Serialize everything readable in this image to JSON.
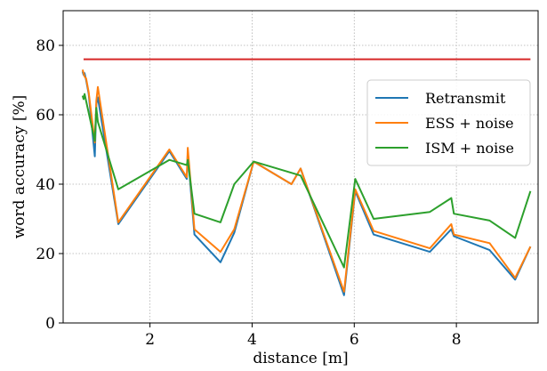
{
  "chart_data": {
    "type": "line",
    "xlabel": "distance [m]",
    "ylabel": "word accuracy [%]",
    "xlim": [
      0.3,
      9.6
    ],
    "ylim": [
      0,
      90
    ],
    "xticks": [
      2,
      4,
      6,
      8
    ],
    "yticks": [
      0,
      20,
      40,
      60,
      80
    ],
    "grid": true,
    "legend_position": "upper right",
    "reference_line": {
      "y": 76,
      "x_range": [
        0.7,
        9.45
      ],
      "color": "#d62728"
    },
    "series": [
      {
        "name": "Retransmit",
        "color": "#1f77b4",
        "x": [
          0.68,
          0.7,
          0.72,
          0.75,
          0.8,
          0.92,
          0.95,
          0.98,
          1.38,
          2.38,
          2.72,
          2.74,
          2.87,
          3.38,
          3.65,
          4.03,
          4.77,
          4.95,
          5.8,
          6.02,
          6.38,
          7.48,
          7.9,
          7.95,
          8.65,
          9.15,
          9.45
        ],
        "y": [
          72.5,
          71.5,
          72.0,
          70.0,
          66.0,
          48.0,
          63.0,
          65.0,
          28.5,
          49.5,
          41.5,
          49.0,
          25.5,
          17.5,
          26.0,
          46.5,
          40.0,
          44.5,
          8.0,
          38.0,
          25.5,
          20.5,
          27.0,
          25.0,
          21.0,
          12.5,
          22.0
        ]
      },
      {
        "name": "ESS + noise",
        "color": "#ff7f0e",
        "x": [
          0.68,
          0.7,
          0.72,
          0.75,
          0.8,
          0.92,
          0.95,
          0.98,
          1.38,
          2.38,
          2.72,
          2.74,
          2.87,
          3.38,
          3.65,
          4.03,
          4.77,
          4.95,
          5.8,
          6.02,
          6.38,
          7.48,
          7.9,
          7.95,
          8.65,
          9.15,
          9.45
        ],
        "y": [
          73.0,
          72.0,
          71.0,
          70.5,
          66.5,
          52.0,
          64.0,
          68.0,
          29.0,
          50.0,
          42.0,
          50.5,
          27.0,
          20.5,
          27.0,
          46.5,
          40.0,
          44.5,
          9.0,
          38.5,
          26.5,
          21.5,
          28.5,
          25.5,
          23.0,
          13.0,
          22.0
        ]
      },
      {
        "name": "ISM + noise",
        "color": "#2ca02c",
        "x": [
          0.68,
          0.7,
          0.72,
          0.75,
          0.92,
          0.95,
          0.98,
          1.38,
          2.38,
          2.72,
          2.74,
          2.87,
          3.38,
          3.65,
          4.03,
          4.95,
          5.8,
          6.02,
          6.38,
          7.48,
          7.9,
          7.95,
          8.65,
          9.15,
          9.45
        ],
        "y": [
          65.5,
          64.5,
          66.0,
          64.0,
          52.5,
          62.0,
          58.0,
          38.5,
          47.0,
          45.5,
          47.0,
          31.5,
          29.0,
          40.0,
          46.5,
          42.5,
          16.0,
          41.5,
          30.0,
          32.0,
          36.0,
          31.5,
          29.5,
          24.5,
          38.0
        ]
      }
    ]
  }
}
